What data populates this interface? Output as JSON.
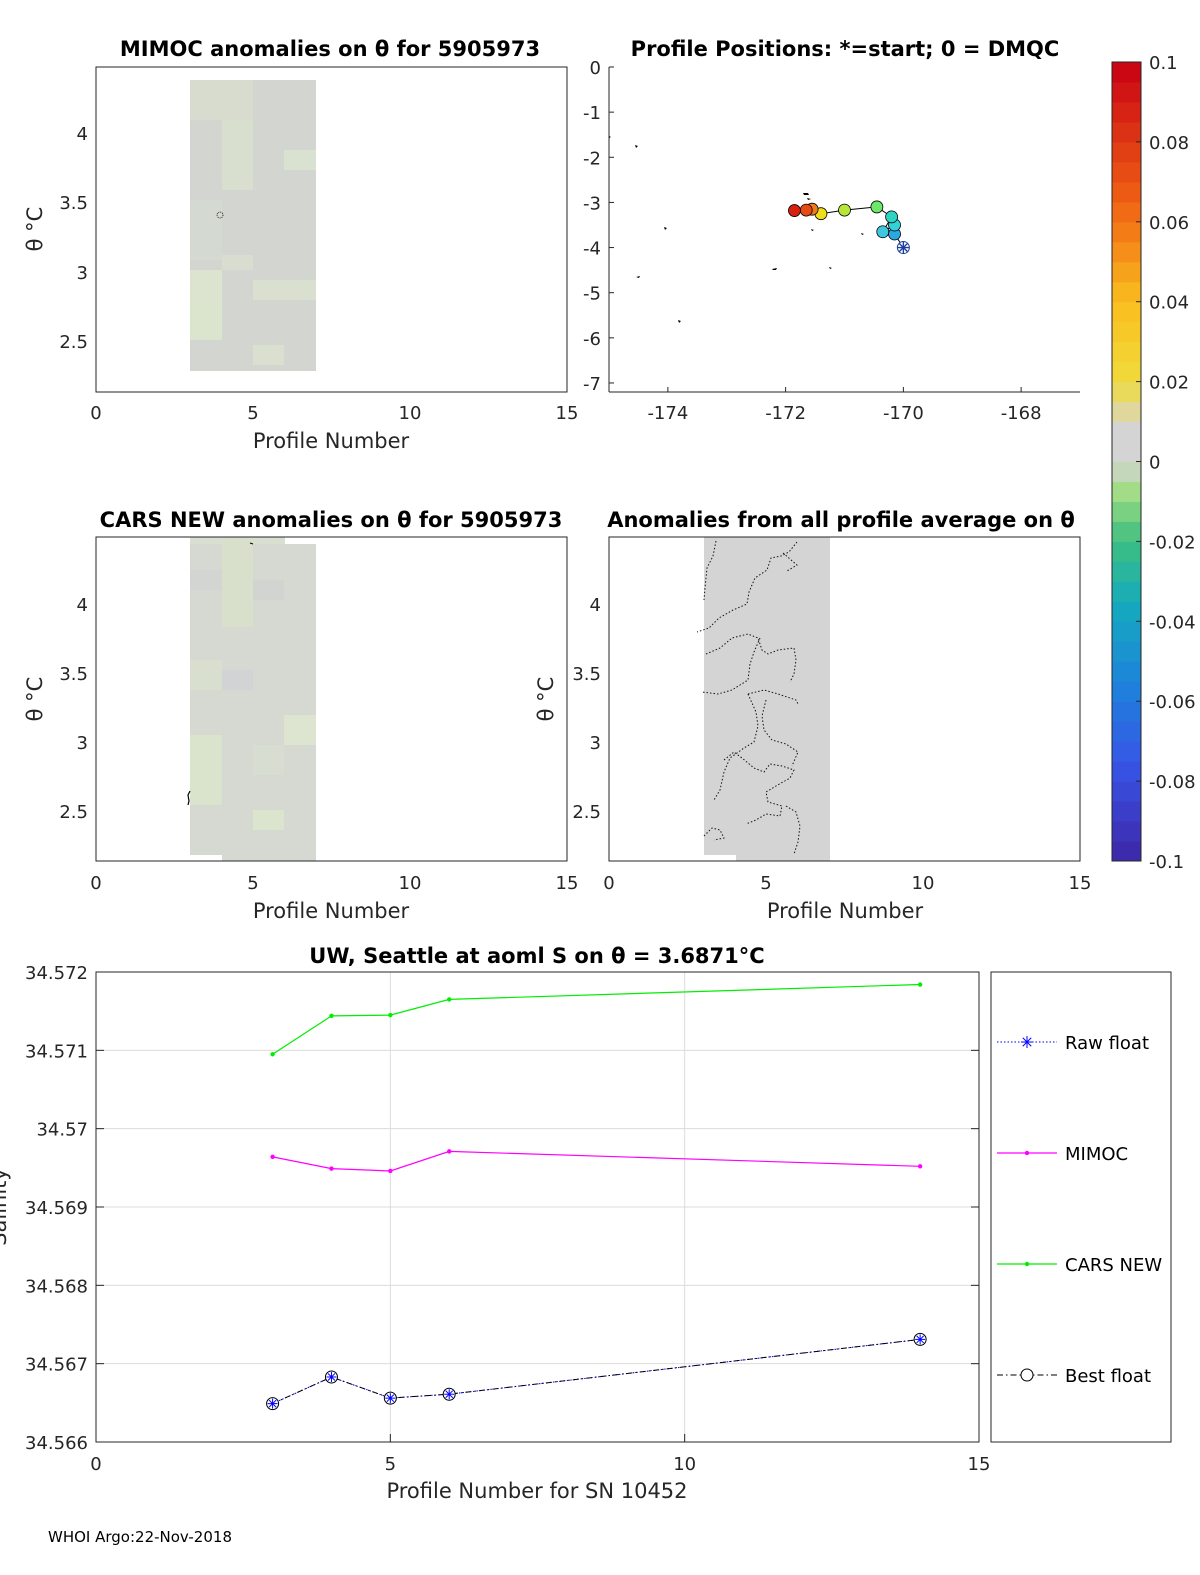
{
  "chart_data": [
    {
      "id": "mimoc",
      "type": "heatmap",
      "title": "MIMOC anomalies on θ  for 5905973",
      "xlabel": "Profile Number",
      "ylabel": "θ °C",
      "xlim": [
        0,
        15
      ],
      "ylim": [
        2.15,
        4.45
      ],
      "xticks": [
        0,
        5,
        10,
        15
      ],
      "yticks": [
        2.5,
        3,
        3.5,
        4
      ],
      "data_x_range": [
        3,
        7
      ],
      "data_y_range": [
        2.3,
        4.38
      ]
    },
    {
      "id": "positions",
      "type": "scatter",
      "title": "Profile Positions: *=start; 0 = DMQC",
      "xlabel": "",
      "ylabel": "",
      "xlim": [
        -175,
        -167
      ],
      "ylim": [
        -7.2,
        0
      ],
      "xticks": [
        -174,
        -172,
        -170,
        -168
      ],
      "yticks": [
        0,
        -1,
        -2,
        -3,
        -4,
        -5,
        -6,
        -7
      ],
      "start": {
        "lon": -170.0,
        "lat": -4.0
      },
      "track": [
        {
          "lon": -170.0,
          "lat": -4.0
        },
        {
          "lon": -170.15,
          "lat": -3.7
        },
        {
          "lon": -170.15,
          "lat": -3.5
        },
        {
          "lon": -170.35,
          "lat": -3.65
        },
        {
          "lon": -170.2,
          "lat": -3.32
        },
        {
          "lon": -170.45,
          "lat": -3.1
        },
        {
          "lon": -171.0,
          "lat": -3.17
        },
        {
          "lon": -171.4,
          "lat": -3.25
        },
        {
          "lon": -171.55,
          "lat": -3.15
        },
        {
          "lon": -171.65,
          "lat": -3.17
        },
        {
          "lon": -171.85,
          "lat": -3.18
        }
      ],
      "point_colors": [
        "#1f6fd6",
        "#2aa8df",
        "#34d2d6",
        "#3fc7df",
        "#2fd3c3",
        "#6ee86b",
        "#b6e63a",
        "#f0de1a",
        "#f07a1a",
        "#e84a14",
        "#d8200f"
      ]
    },
    {
      "id": "colorbar",
      "type": "heatmap",
      "title": "",
      "range": [
        -0.1,
        0.1
      ],
      "ticks": [
        "0.1",
        "0.08",
        "0.06",
        "0.04",
        "0.02",
        "0",
        "-0.02",
        "-0.04",
        "-0.06",
        "-0.08",
        "-0.1"
      ]
    },
    {
      "id": "cars",
      "type": "heatmap",
      "title": "CARS NEW anomalies on θ for 5905973",
      "xlabel": "Profile Number",
      "ylabel": "θ °C",
      "xlim": [
        0,
        15
      ],
      "ylim": [
        2.15,
        4.45
      ],
      "xticks": [
        0,
        5,
        10,
        15
      ],
      "yticks": [
        2.5,
        3,
        3.5,
        4
      ],
      "data_x_range": [
        3,
        7
      ],
      "data_y_range": [
        2.15,
        4.45
      ]
    },
    {
      "id": "allavg",
      "type": "heatmap",
      "title": "Anomalies from all profile average on θ",
      "xlabel": "Profile Number",
      "ylabel": "θ °C",
      "xlim": [
        0,
        15
      ],
      "ylim": [
        2.15,
        4.45
      ],
      "xticks": [
        0,
        5,
        10,
        15
      ],
      "yticks": [
        2.5,
        3,
        3.5,
        4
      ],
      "data_x_range": [
        3,
        7
      ],
      "data_y_range": [
        2.15,
        4.45
      ]
    },
    {
      "id": "salinity",
      "type": "line",
      "title": "UW, Seattle at aoml S on θ = 3.6871°C",
      "xlabel": "Profile Number for SN 10452",
      "ylabel": "Salinity",
      "xlim": [
        0,
        15
      ],
      "ylim": [
        34.566,
        34.572
      ],
      "xticks": [
        "0",
        "5",
        "10",
        "15"
      ],
      "yticks": [
        "34.566",
        "34.567",
        "34.568",
        "34.569",
        "34.57",
        "34.571",
        "34.572"
      ],
      "x": [
        3,
        4,
        5,
        6,
        14
      ],
      "series": [
        {
          "name": "Raw float",
          "color": "#0000ff",
          "values": [
            34.56649,
            34.56683,
            34.56656,
            34.56661,
            34.56731
          ]
        },
        {
          "name": "MIMOC",
          "color": "#ff00ff",
          "values": [
            34.56964,
            34.56949,
            34.56946,
            34.56971,
            34.56952
          ]
        },
        {
          "name": "CARS NEW",
          "color": "#00ee00",
          "values": [
            34.57095,
            34.57144,
            34.57145,
            34.57165,
            34.57184
          ]
        },
        {
          "name": "Best float",
          "color": "#000000",
          "values": [
            34.56649,
            34.56683,
            34.56656,
            34.56661,
            34.56731
          ]
        }
      ],
      "legend": [
        "Raw float",
        "MIMOC",
        "CARS NEW",
        "Best float"
      ],
      "legend_position": "right"
    }
  ],
  "footer": "WHOI Argo:22-Nov-2018"
}
